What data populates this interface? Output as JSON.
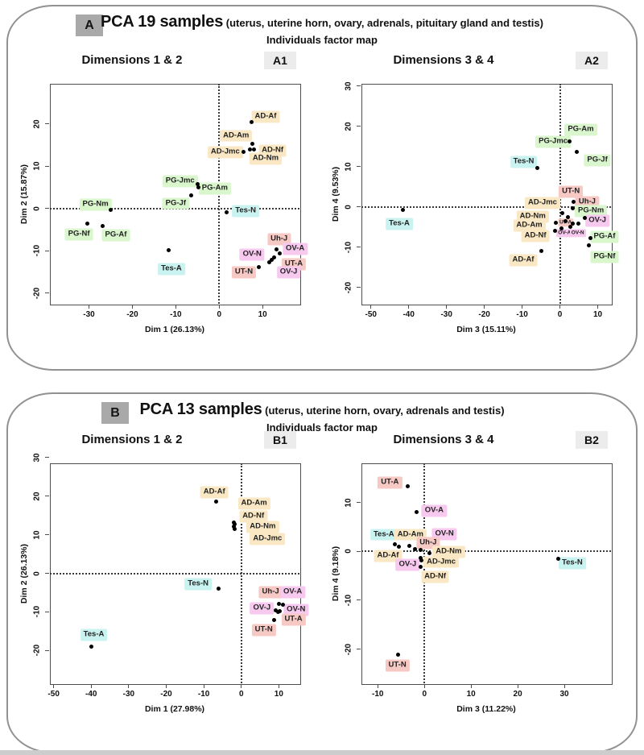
{
  "panels": [
    {
      "letter": "A",
      "title_main": "PCA 19 samples",
      "title_detail": " (uterus, uterine horn, ovary, adrenals, pituitary gland and testis)",
      "subtitle": "Individuals factor map"
    },
    {
      "letter": "B",
      "title_main": "PCA 13 samples",
      "title_detail": " (uterus, uterine horn, ovary, adrenals and testis)",
      "subtitle": "Individuals factor map"
    }
  ],
  "palette": {
    "AD": "#fae8c4",
    "PG": "#d9f6cd",
    "Tes": "#c9f3f1",
    "UT": "#f7c9c4",
    "Uh": "#f7c9c4",
    "OV": "#f7c9ef",
    "point": "#000000",
    "axis": "#4e4e4e",
    "tag_bg": "#ececec",
    "letter_bg": "#a9a9a9",
    "panel_border": "#919191"
  },
  "chart_data": [
    {
      "tag": "A1",
      "panel": "A",
      "type": "scatter",
      "title": "Dimensions 1 & 2",
      "xlabel": "Dim 1 (26.13%)",
      "ylabel": "Dim 2 (15.87%)",
      "xlim": [
        -39,
        18.5
      ],
      "ylim": [
        -22.5,
        29.5
      ],
      "xticks": [
        -30,
        -20,
        -10,
        0,
        10
      ],
      "yticks": [
        -20,
        -10,
        0,
        10,
        20
      ],
      "zero_lines": true,
      "points": [
        [
          7.5,
          20.4
        ],
        [
          7.6,
          15.3
        ],
        [
          7.1,
          14.0
        ],
        [
          8.0,
          14.0
        ],
        [
          5.6,
          13.4
        ],
        [
          -4.9,
          5.8
        ],
        [
          -4.7,
          5.0
        ],
        [
          -6.4,
          3.1
        ],
        [
          -25.0,
          -0.4
        ],
        [
          -30.3,
          -3.5
        ],
        [
          -26.8,
          -4.1
        ],
        [
          1.7,
          -0.9
        ],
        [
          -11.6,
          -9.9
        ],
        [
          13.2,
          -9.7
        ],
        [
          13.9,
          -10.5
        ],
        [
          12.6,
          -11.6
        ],
        [
          12.1,
          -12.1
        ],
        [
          11.5,
          -12.6
        ],
        [
          9.1,
          -13.9
        ]
      ],
      "labels": [
        {
          "text": "AD-Af",
          "x": 10.7,
          "y": 21.6,
          "group": "AD"
        },
        {
          "text": "AD-Am",
          "x": 3.9,
          "y": 17.2,
          "group": "AD"
        },
        {
          "text": "AD-Jmc",
          "x": 1.4,
          "y": 13.3,
          "group": "AD"
        },
        {
          "text": "AD-Nf",
          "x": 12.3,
          "y": 13.6,
          "group": "AD"
        },
        {
          "text": "AD-Nm",
          "x": 10.7,
          "y": 11.8,
          "group": "AD"
        },
        {
          "text": "PG-Jmc",
          "x": -9.0,
          "y": 6.5,
          "group": "PG"
        },
        {
          "text": "PG-Am",
          "x": -1.0,
          "y": 4.7,
          "group": "PG"
        },
        {
          "text": "PG-Jf",
          "x": -10.0,
          "y": 1.2,
          "group": "PG"
        },
        {
          "text": "PG-Nm",
          "x": -28.5,
          "y": 0.9,
          "group": "PG"
        },
        {
          "text": "PG-Nf",
          "x": -32.3,
          "y": -6.1,
          "group": "PG"
        },
        {
          "text": "PG-Af",
          "x": -23.8,
          "y": -6.3,
          "group": "PG"
        },
        {
          "text": "Tes-N",
          "x": 6.1,
          "y": -0.6,
          "group": "Tes"
        },
        {
          "text": "Tes-A",
          "x": -11.0,
          "y": -14.3,
          "group": "Tes"
        },
        {
          "text": "Uh-J",
          "x": 13.8,
          "y": -7.3,
          "group": "Uh"
        },
        {
          "text": "OV-A",
          "x": 17.5,
          "y": -9.6,
          "group": "OV"
        },
        {
          "text": "OV-N",
          "x": 7.6,
          "y": -10.9,
          "group": "OV"
        },
        {
          "text": "UT-A",
          "x": 17.2,
          "y": -13.1,
          "group": "UT"
        },
        {
          "text": "OV-J",
          "x": 16.0,
          "y": -15.1,
          "group": "OV"
        },
        {
          "text": "UT-N",
          "x": 5.7,
          "y": -15.1,
          "group": "UT"
        }
      ]
    },
    {
      "tag": "A2",
      "panel": "A",
      "type": "scatter",
      "title": "Dimensions 3 & 4",
      "xlabel": "Dim 3 (15.11%)",
      "ylabel": "Dim 4 (9.53%)",
      "xlim": [
        -52.5,
        13.5
      ],
      "ylim": [
        -24,
        30.5
      ],
      "xticks": [
        -50,
        -40,
        -30,
        -20,
        -10,
        0,
        10
      ],
      "yticks": [
        -20,
        -10,
        0,
        10,
        20,
        30
      ],
      "zero_lines": true,
      "points": [
        [
          2.6,
          16.3
        ],
        [
          4.5,
          13.6
        ],
        [
          -6.0,
          9.7
        ],
        [
          -41.5,
          -0.7
        ],
        [
          3.5,
          1.2
        ],
        [
          3.4,
          -0.3
        ],
        [
          0.6,
          -1.6
        ],
        [
          2.1,
          -2.6
        ],
        [
          6.6,
          -2.8
        ],
        [
          -1.0,
          -4.0
        ],
        [
          3.3,
          -4.2
        ],
        [
          4.9,
          -4.2
        ],
        [
          1.5,
          -3.5
        ],
        [
          2.7,
          -4.9
        ],
        [
          0.5,
          -5.3
        ],
        [
          -1.4,
          -6.0
        ],
        [
          8.0,
          -7.8
        ],
        [
          7.6,
          -9.6
        ],
        [
          -4.9,
          -11.0
        ]
      ],
      "labels": [
        {
          "text": "PG-Am",
          "x": 5.5,
          "y": 19.1,
          "group": "PG"
        },
        {
          "text": "PG-Jmc",
          "x": -1.8,
          "y": 16.1,
          "group": "PG"
        },
        {
          "text": "PG-Jf",
          "x": 9.9,
          "y": 11.6,
          "group": "PG"
        },
        {
          "text": "Tes-N",
          "x": -9.6,
          "y": 11.1,
          "group": "Tes"
        },
        {
          "text": "UT-N",
          "x": 2.9,
          "y": 3.8,
          "group": "UT"
        },
        {
          "text": "Uh-J",
          "x": 7.2,
          "y": 1.1,
          "group": "Uh"
        },
        {
          "text": "AD-Jmc",
          "x": -4.6,
          "y": 0.9,
          "group": "AD"
        },
        {
          "text": "PG-Nm",
          "x": 8.2,
          "y": -1.1,
          "group": "PG"
        },
        {
          "text": "AD-Nm",
          "x": -7.2,
          "y": -2.4,
          "group": "AD"
        },
        {
          "text": "AD-Am",
          "x": -8.1,
          "y": -4.7,
          "group": "AD"
        },
        {
          "text": "UT-A",
          "x": 1.5,
          "y": -3.9,
          "group": "UT",
          "small": true
        },
        {
          "text": "OV-J",
          "x": 9.9,
          "y": -3.5,
          "group": "OV"
        },
        {
          "text": "AD-Nf",
          "x": -6.5,
          "y": -7.3,
          "group": "AD"
        },
        {
          "text": "OV-A",
          "x": 1.2,
          "y": -6.5,
          "group": "OV",
          "small": true
        },
        {
          "text": "OV-N",
          "x": 4.7,
          "y": -6.5,
          "group": "OV",
          "small": true
        },
        {
          "text": "PG-Af",
          "x": 11.8,
          "y": -7.5,
          "group": "PG"
        },
        {
          "text": "PG-Nf",
          "x": 11.8,
          "y": -12.5,
          "group": "PG"
        },
        {
          "text": "AD-Af",
          "x": -9.7,
          "y": -13.2,
          "group": "AD"
        },
        {
          "text": "Tes-A",
          "x": -42.5,
          "y": -4.2,
          "group": "Tes"
        }
      ]
    },
    {
      "tag": "B1",
      "panel": "B",
      "type": "scatter",
      "title": "Dimensions 1 & 2",
      "xlabel": "Dim 1 (27.98%)",
      "ylabel": "Dim 2 (26.13%)",
      "xlim": [
        -51,
        15.5
      ],
      "ylim": [
        -28.5,
        28.5
      ],
      "xticks": [
        -50,
        -40,
        -30,
        -20,
        -10,
        0,
        10
      ],
      "yticks": [
        -20,
        -10,
        0,
        10,
        20,
        30
      ],
      "zero_lines": true,
      "points": [
        [
          -6.6,
          18.5
        ],
        [
          -1.9,
          13.2
        ],
        [
          -1.8,
          12.7
        ],
        [
          -2.0,
          12.1
        ],
        [
          -1.7,
          11.4
        ],
        [
          -6.0,
          -4.0
        ],
        [
          -39.9,
          -19.0
        ],
        [
          10.0,
          -8.0
        ],
        [
          11.0,
          -8.2
        ],
        [
          9.2,
          -9.7
        ],
        [
          9.8,
          -10.0
        ],
        [
          10.3,
          -9.9
        ],
        [
          8.7,
          -12.1
        ]
      ],
      "labels": [
        {
          "text": "AD-Af",
          "x": -7.2,
          "y": 21.0,
          "group": "AD"
        },
        {
          "text": "AD-Am",
          "x": 3.4,
          "y": 18.0,
          "group": "AD"
        },
        {
          "text": "AD-Nf",
          "x": 3.2,
          "y": 14.7,
          "group": "AD"
        },
        {
          "text": "AD-Nm",
          "x": 5.7,
          "y": 12.0,
          "group": "AD"
        },
        {
          "text": "AD-Jmc",
          "x": 7.0,
          "y": 8.8,
          "group": "AD"
        },
        {
          "text": "Tes-N",
          "x": -11.5,
          "y": -2.8,
          "group": "Tes"
        },
        {
          "text": "Uh-J",
          "x": 7.8,
          "y": -4.9,
          "group": "Uh"
        },
        {
          "text": "OV-A",
          "x": 13.7,
          "y": -4.9,
          "group": "OV"
        },
        {
          "text": "OV-J",
          "x": 5.5,
          "y": -9.0,
          "group": "OV"
        },
        {
          "text": "OV-N",
          "x": 14.6,
          "y": -9.5,
          "group": "OV"
        },
        {
          "text": "UT-A",
          "x": 13.9,
          "y": -12.0,
          "group": "UT"
        },
        {
          "text": "UT-N",
          "x": 6.0,
          "y": -14.7,
          "group": "UT"
        },
        {
          "text": "Tes-A",
          "x": -39.3,
          "y": -16.0,
          "group": "Tes"
        }
      ]
    },
    {
      "tag": "B2",
      "panel": "B",
      "type": "scatter",
      "title": "Dimensions 3 & 4",
      "xlabel": "Dim 3 (11.22%)",
      "ylabel": "Dim 4 (9.18%)",
      "xlim": [
        -13.5,
        40
      ],
      "ylim": [
        -27,
        18
      ],
      "xticks": [
        -10,
        0,
        10,
        20,
        30
      ],
      "yticks": [
        -20,
        -10,
        0,
        10
      ],
      "zero_lines": true,
      "points": [
        [
          -3.6,
          13.3
        ],
        [
          -1.7,
          8.1
        ],
        [
          -6.4,
          1.4
        ],
        [
          -5.4,
          1.0
        ],
        [
          -3.3,
          1.1
        ],
        [
          -2.1,
          0.5
        ],
        [
          -0.75,
          0.35
        ],
        [
          1.05,
          -0.3
        ],
        [
          -0.8,
          -1.3
        ],
        [
          -0.7,
          -1.9
        ],
        [
          -0.85,
          -3.1
        ],
        [
          28.7,
          -1.5
        ],
        [
          -5.6,
          -21.2
        ]
      ],
      "labels": [
        {
          "text": "UT-A",
          "x": -7.4,
          "y": 14.0,
          "group": "UT"
        },
        {
          "text": "OV-A",
          "x": 2.1,
          "y": 8.3,
          "group": "OV"
        },
        {
          "text": "Tes-A",
          "x": -8.7,
          "y": 3.4,
          "group": "Tes"
        },
        {
          "text": "AD-Am",
          "x": -3.0,
          "y": 3.4,
          "group": "AD"
        },
        {
          "text": "OV-N",
          "x": 4.3,
          "y": 3.5,
          "group": "OV"
        },
        {
          "text": "Uh-J",
          "x": 0.8,
          "y": 1.7,
          "group": "Uh"
        },
        {
          "text": "AD-Af",
          "x": -7.8,
          "y": -0.9,
          "group": "AD"
        },
        {
          "text": "AD-Nm",
          "x": 5.2,
          "y": -0.2,
          "group": "AD"
        },
        {
          "text": "OV-J",
          "x": -3.6,
          "y": -2.7,
          "group": "OV"
        },
        {
          "text": "AD-Jmc",
          "x": 3.6,
          "y": -2.2,
          "group": "AD"
        },
        {
          "text": "AD-Nf",
          "x": 2.3,
          "y": -5.2,
          "group": "AD"
        },
        {
          "text": "Tes-N",
          "x": 31.7,
          "y": -2.4,
          "group": "Tes"
        },
        {
          "text": "UT-N",
          "x": -5.8,
          "y": -23.4,
          "group": "UT"
        }
      ]
    }
  ]
}
